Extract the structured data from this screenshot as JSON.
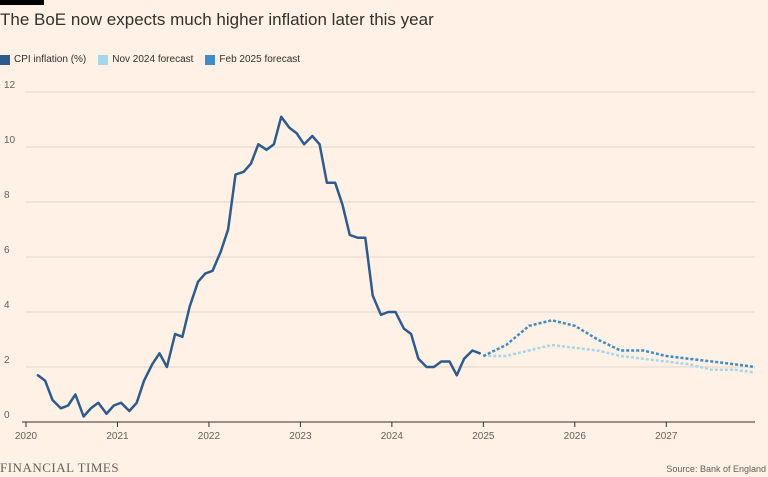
{
  "colors": {
    "background": "#FFF1E5",
    "cpi": "#2E5B8E",
    "nov": "#A6D6EA",
    "feb": "#3F8BC9",
    "grid": "#E2D6CC",
    "axis": "#33302E"
  },
  "chart_data": {
    "type": "line",
    "title": "The BoE now expects much higher inflation later this year",
    "xlabel": "",
    "ylabel": "",
    "ylim": [
      0,
      12
    ],
    "yticks": [
      "0",
      "2",
      "4",
      "6",
      "8",
      "10",
      "12"
    ],
    "xlim": [
      2020,
      2027.97
    ],
    "xticks": [
      "2020",
      "2021",
      "2022",
      "2023",
      "2024",
      "2025",
      "2026",
      "2027"
    ],
    "grid": "horizontal",
    "legend_position": "top-left",
    "series": [
      {
        "name": "CPI inflation (%)",
        "style": "solid",
        "x": [
          2020.13,
          2020.21,
          2020.29,
          2020.38,
          2020.46,
          2020.54,
          2020.63,
          2020.71,
          2020.79,
          2020.88,
          2020.96,
          2021.04,
          2021.13,
          2021.21,
          2021.29,
          2021.38,
          2021.46,
          2021.54,
          2021.63,
          2021.71,
          2021.79,
          2021.88,
          2021.96,
          2022.04,
          2022.13,
          2022.21,
          2022.29,
          2022.38,
          2022.46,
          2022.54,
          2022.63,
          2022.71,
          2022.79,
          2022.88,
          2022.96,
          2023.04,
          2023.13,
          2023.21,
          2023.29,
          2023.38,
          2023.46,
          2023.54,
          2023.63,
          2023.71,
          2023.79,
          2023.88,
          2023.96,
          2024.04,
          2024.13,
          2024.21,
          2024.29,
          2024.38,
          2024.46,
          2024.54,
          2024.63,
          2024.71,
          2024.79,
          2024.88,
          2024.96
        ],
        "values": [
          1.7,
          1.5,
          0.8,
          0.5,
          0.6,
          1.0,
          0.2,
          0.5,
          0.7,
          0.3,
          0.6,
          0.7,
          0.4,
          0.7,
          1.5,
          2.1,
          2.5,
          2.0,
          3.2,
          3.1,
          4.2,
          5.1,
          5.4,
          5.5,
          6.2,
          7.0,
          9.0,
          9.1,
          9.4,
          10.1,
          9.9,
          10.1,
          11.1,
          10.7,
          10.5,
          10.1,
          10.4,
          10.1,
          8.7,
          8.7,
          7.9,
          6.8,
          6.7,
          6.7,
          4.6,
          3.9,
          4.0,
          4.0,
          3.4,
          3.2,
          2.3,
          2.0,
          2.0,
          2.2,
          2.2,
          1.7,
          2.3,
          2.6,
          2.5
        ]
      },
      {
        "name": "Nov 2024 forecast",
        "style": "dotted",
        "x": [
          2025.0,
          2025.25,
          2025.5,
          2025.75,
          2026.0,
          2026.25,
          2026.5,
          2026.75,
          2027.0,
          2027.25,
          2027.5,
          2027.75,
          2027.97
        ],
        "values": [
          2.4,
          2.4,
          2.6,
          2.8,
          2.7,
          2.6,
          2.4,
          2.3,
          2.2,
          2.1,
          1.9,
          1.9,
          1.8
        ]
      },
      {
        "name": "Feb 2025 forecast",
        "style": "dotted",
        "x": [
          2025.0,
          2025.25,
          2025.5,
          2025.75,
          2026.0,
          2026.25,
          2026.5,
          2026.75,
          2027.0,
          2027.25,
          2027.5,
          2027.75,
          2027.97
        ],
        "values": [
          2.4,
          2.8,
          3.5,
          3.7,
          3.5,
          3.0,
          2.6,
          2.6,
          2.4,
          2.3,
          2.2,
          2.1,
          2.0
        ]
      }
    ]
  },
  "footer": {
    "brand": "FINANCIAL TIMES",
    "source": "Source: Bank of England"
  }
}
